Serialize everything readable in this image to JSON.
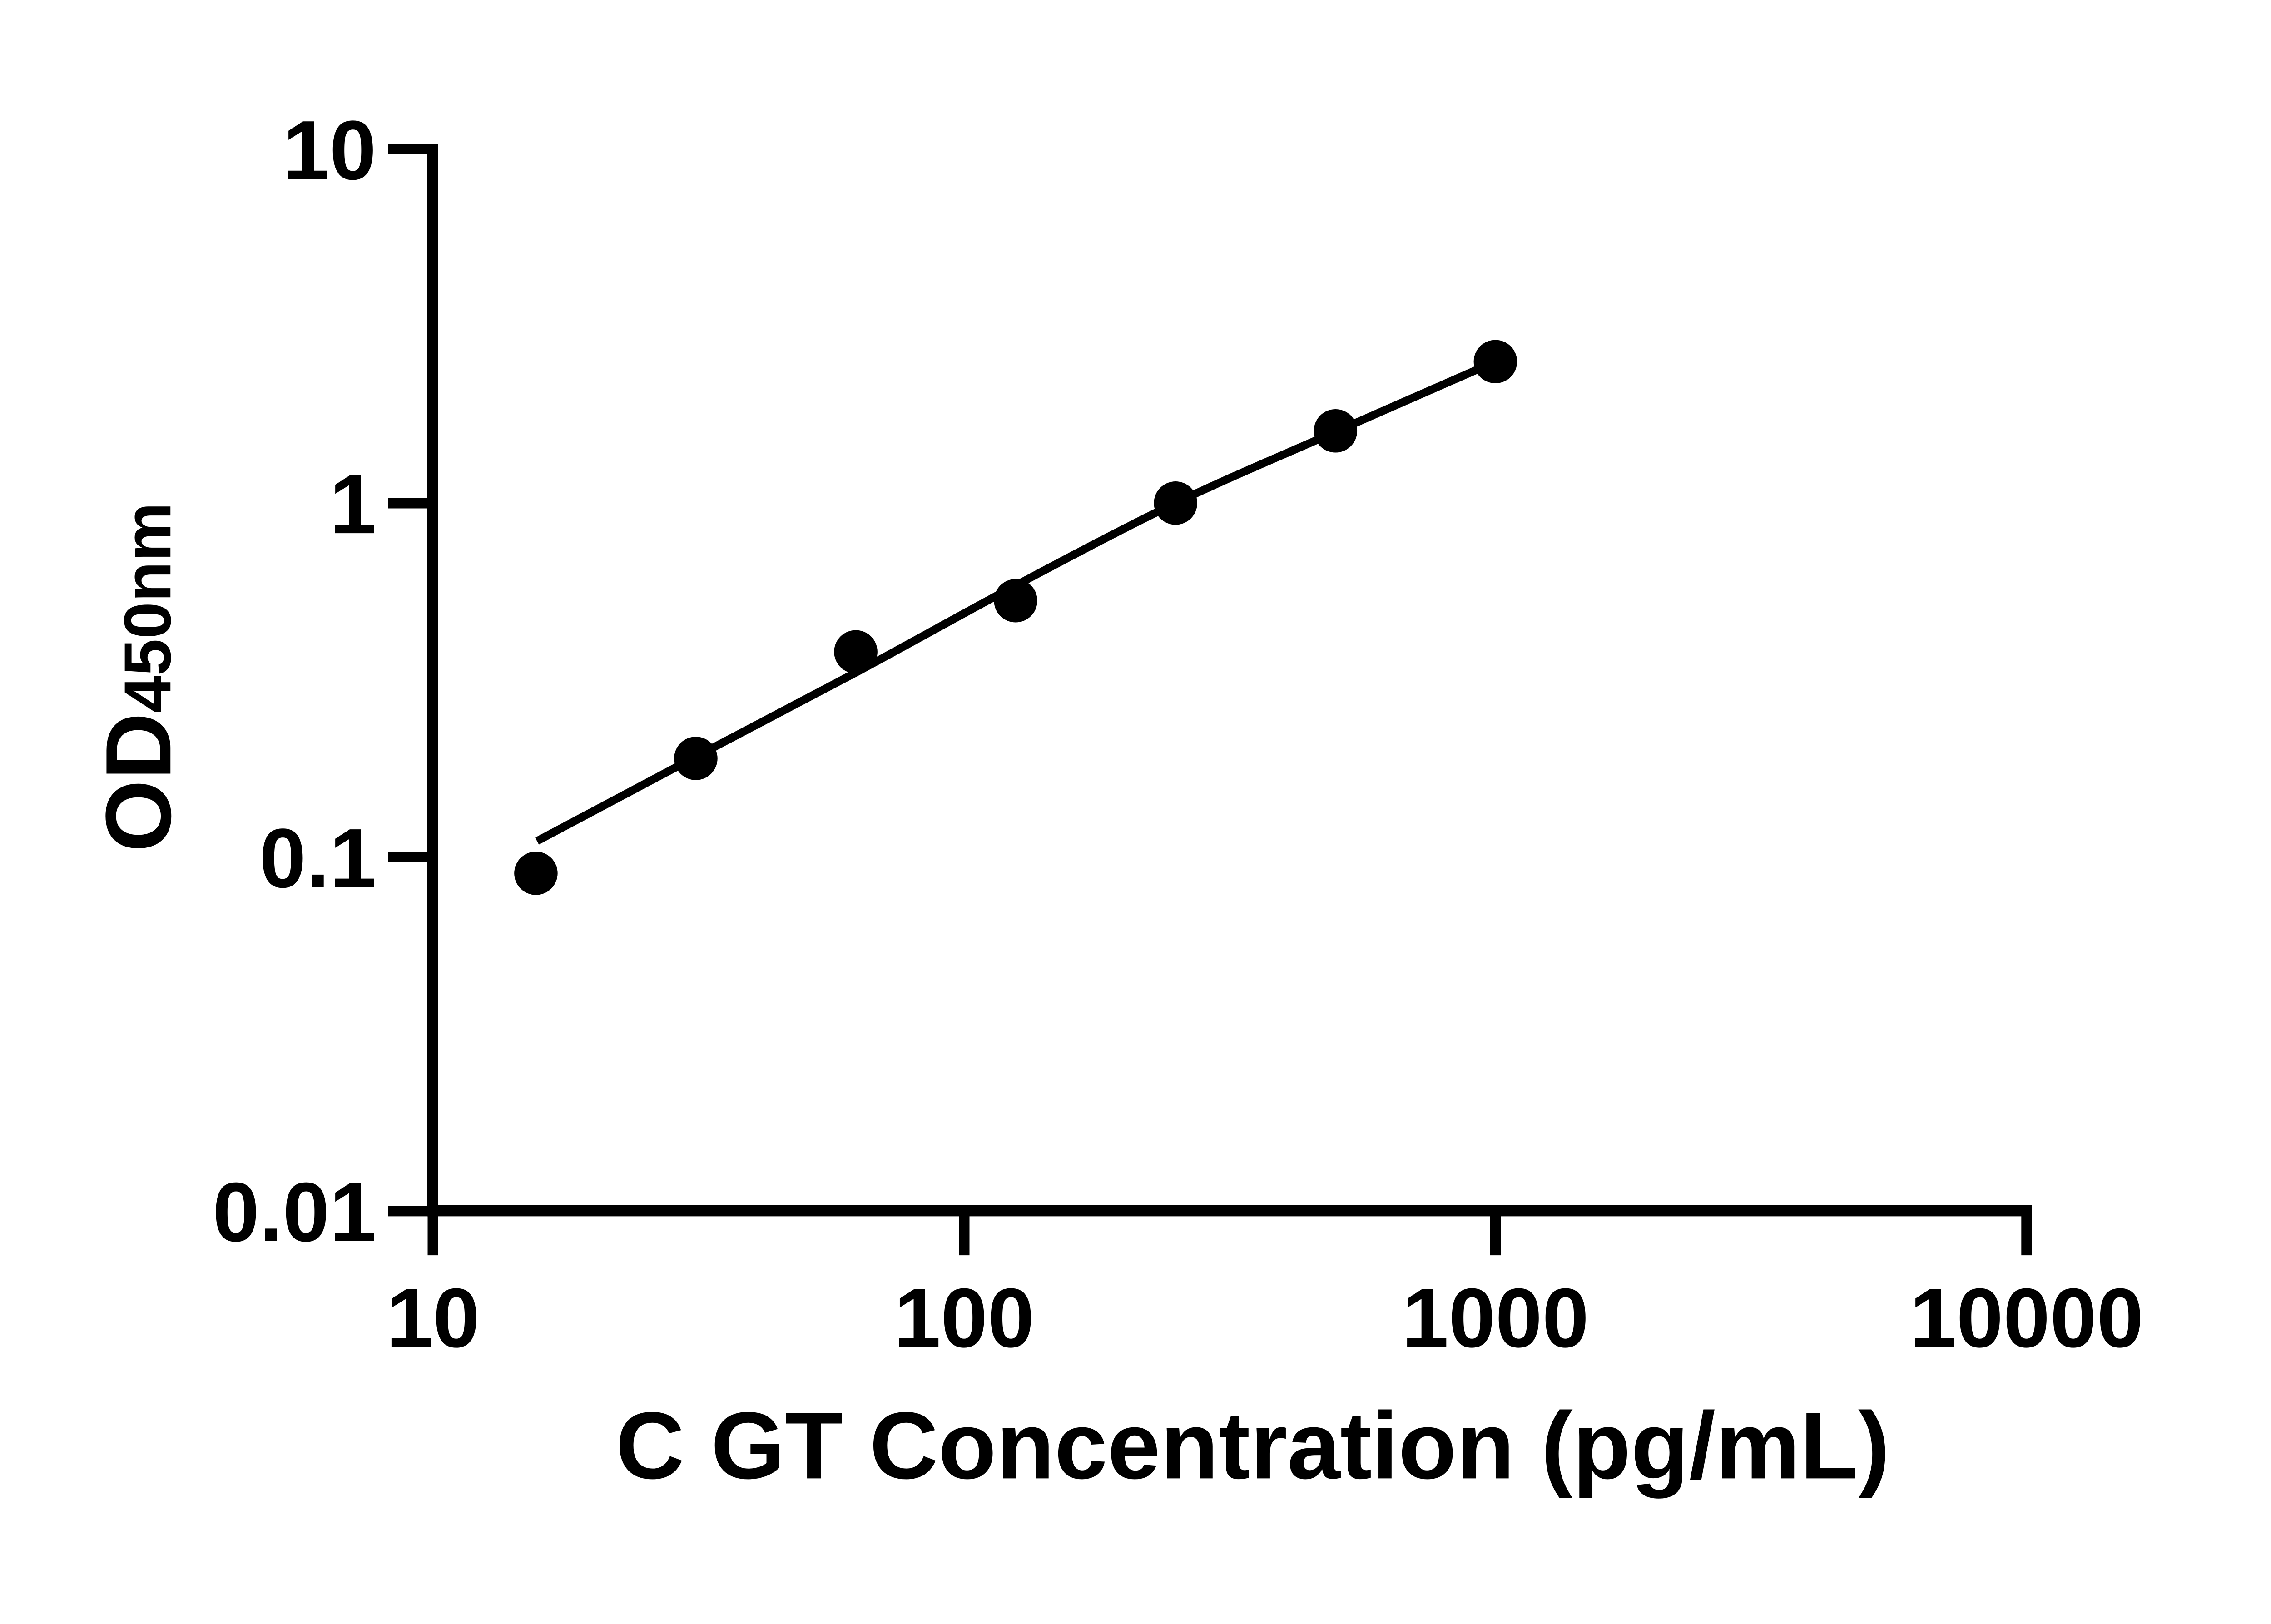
{
  "figure": {
    "background": "#ffffff",
    "ink_color": "#000000"
  },
  "chart_data": {
    "type": "scatter",
    "title": "",
    "xlabel": "C GT Concentration (pg/mL)",
    "ylabel_main": "OD",
    "ylabel_sub": "450nm",
    "x_scale": "log",
    "y_scale": "log",
    "xlim": [
      10,
      10000
    ],
    "ylim": [
      0.01,
      10
    ],
    "grid": false,
    "legend": false,
    "x_ticks": [
      {
        "value": 10,
        "label": "10"
      },
      {
        "value": 100,
        "label": "100"
      },
      {
        "value": 1000,
        "label": "1000"
      },
      {
        "value": 10000,
        "label": "10000"
      }
    ],
    "y_ticks": [
      {
        "value": 10,
        "label": "10"
      },
      {
        "value": 1,
        "label": "1"
      },
      {
        "value": 0.1,
        "label": "0.1"
      },
      {
        "value": 0.01,
        "label": "0.01"
      }
    ],
    "series": [
      {
        "name": "standard curve data points",
        "marker": "filled-circle",
        "color": "#000000",
        "points": [
          {
            "x": 15.625,
            "od": 0.09
          },
          {
            "x": 31.25,
            "od": 0.19
          },
          {
            "x": 62.5,
            "od": 0.38
          },
          {
            "x": 125,
            "od": 0.53
          },
          {
            "x": 250,
            "od": 1.0
          },
          {
            "x": 500,
            "od": 1.6
          },
          {
            "x": 1000,
            "od": 2.51
          }
        ]
      }
    ],
    "fit_curve": [
      {
        "x": 15.7,
        "od": 0.111
      },
      {
        "x": 31.25,
        "od": 0.192
      },
      {
        "x": 62.5,
        "od": 0.332
      },
      {
        "x": 125,
        "od": 0.585
      },
      {
        "x": 250,
        "od": 1.0
      },
      {
        "x": 500,
        "od": 1.59
      },
      {
        "x": 1000,
        "od": 2.51
      }
    ]
  }
}
